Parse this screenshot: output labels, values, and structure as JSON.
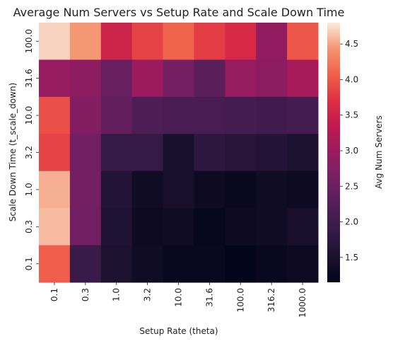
{
  "chart_data": {
    "type": "heatmap",
    "title": "Average Num Servers vs Setup Rate and Scale Down Time",
    "xlabel": "Setup Rate (theta)",
    "ylabel": "Scale Down Time (t_scale_down)",
    "x": [
      "0.1",
      "0.3",
      "1.0",
      "3.2",
      "10.0",
      "31.6",
      "100.0",
      "316.2",
      "1000.0"
    ],
    "y": [
      "100.0",
      "31.6",
      "10.0",
      "3.2",
      "1.0",
      "0.3",
      "0.1"
    ],
    "values": [
      [
        4.7,
        4.45,
        3.5,
        3.85,
        4.1,
        3.8,
        3.6,
        2.9,
        4.0
      ],
      [
        2.95,
        2.85,
        2.45,
        3.0,
        2.6,
        2.3,
        2.95,
        2.85,
        3.1
      ],
      [
        3.95,
        2.75,
        2.4,
        2.15,
        2.1,
        2.1,
        2.05,
        2.0,
        2.05
      ],
      [
        3.85,
        2.55,
        1.85,
        1.85,
        1.45,
        1.75,
        1.65,
        1.6,
        1.5
      ],
      [
        4.55,
        2.6,
        1.6,
        1.35,
        1.45,
        1.3,
        1.25,
        1.35,
        1.3
      ],
      [
        4.6,
        2.55,
        1.55,
        1.3,
        1.35,
        1.2,
        1.3,
        1.35,
        1.45
      ],
      [
        4.05,
        1.9,
        1.5,
        1.35,
        1.25,
        1.25,
        1.15,
        1.25,
        1.3
      ]
    ],
    "colorbar": {
      "label": "Avg Num Servers",
      "range": [
        1.15,
        4.8
      ],
      "ticks": [
        "1.5",
        "2.0",
        "2.5",
        "3.0",
        "3.5",
        "4.0",
        "4.5"
      ]
    },
    "colormap": "rocket",
    "grid": false,
    "legend": "colorbar-right"
  }
}
